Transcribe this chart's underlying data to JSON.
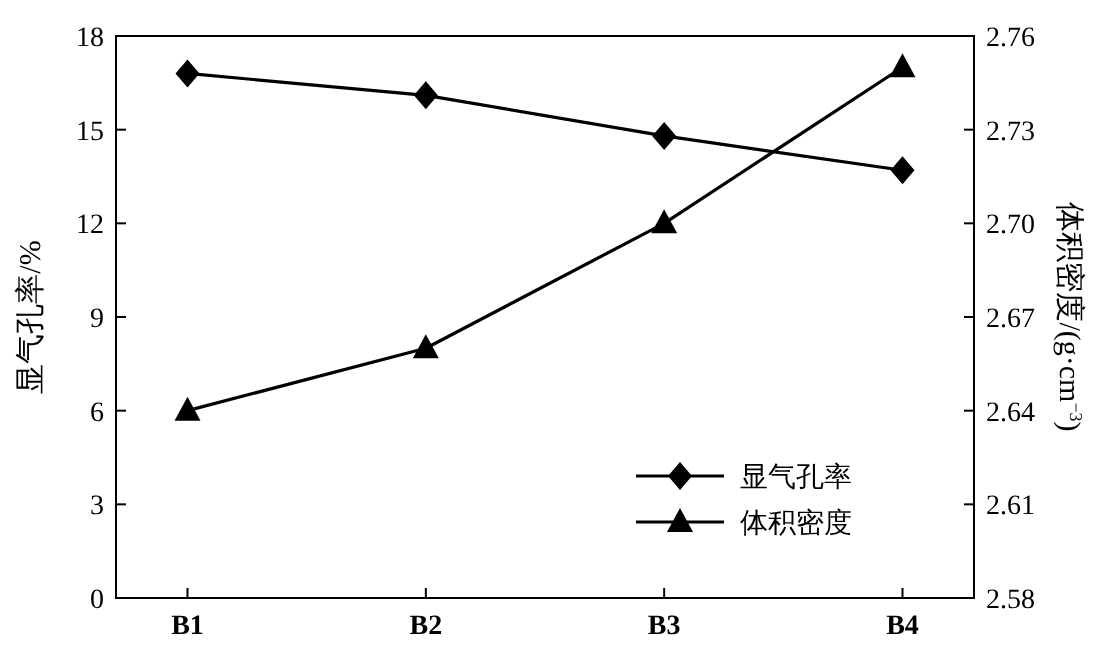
{
  "chart_data": {
    "type": "line",
    "categories": [
      "B1",
      "B2",
      "B3",
      "B4"
    ],
    "ylabel": "显气孔率/%",
    "y2label": "体积密度/(g·cm$^{−3}$)",
    "ylim": [
      0,
      18
    ],
    "yticks": [
      0,
      3,
      6,
      9,
      12,
      15,
      18
    ],
    "y2lim": [
      2.58,
      2.76
    ],
    "y2ticks": [
      2.58,
      2.61,
      2.64,
      2.67,
      {
        "value": 2.7,
        "label": "2.70"
      },
      2.73,
      2.76
    ],
    "legend": "bottom right",
    "series": [
      {
        "name": "显气孔率",
        "color": "#000000",
        "marker": "diamond",
        "values": [
          16.8,
          16.1,
          14.8,
          13.7
        ]
      },
      {
        "name": "体积密度",
        "color": "#000000",
        "marker": "triangle",
        "axis": "y2",
        "values": [
          2.64,
          2.66,
          2.7,
          2.75
        ]
      }
    ]
  }
}
